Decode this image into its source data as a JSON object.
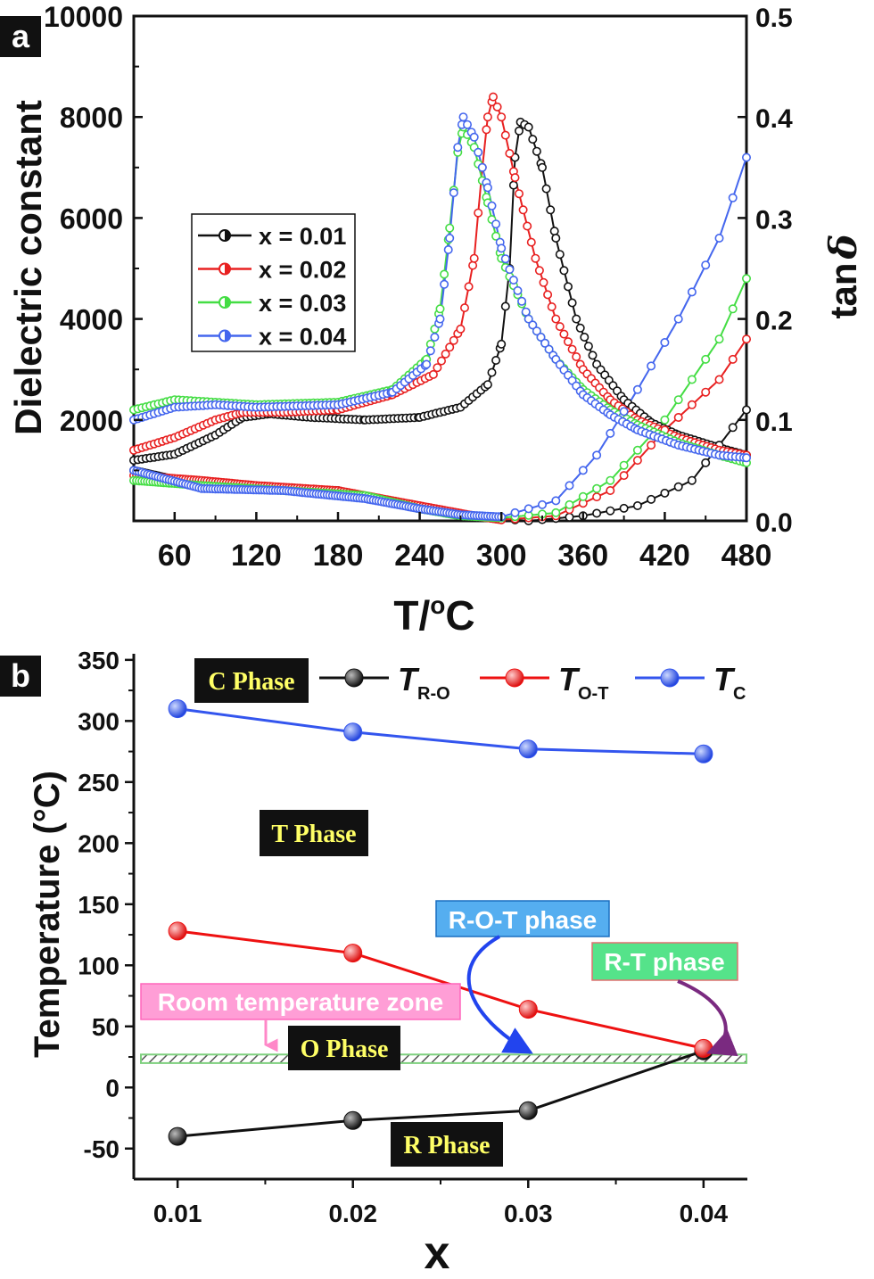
{
  "panel_a": {
    "label": "a",
    "chart_data": {
      "type": "line",
      "xlabel": "T/",
      "xlabel_sup": "o",
      "xlabel_unit": "C",
      "ylabel": "Dielectric constant",
      "y2label": "tan",
      "y2label_symbol": "δ",
      "xlim": [
        30,
        480
      ],
      "ylim": [
        0,
        10000
      ],
      "y2lim": [
        0,
        0.5
      ],
      "xticks": [
        "60",
        "120",
        "180",
        "240",
        "300",
        "360",
        "420",
        "480"
      ],
      "yticks": [
        "2000",
        "4000",
        "6000",
        "8000",
        "10000"
      ],
      "y2ticks": [
        "0.0",
        "0.1",
        "0.2",
        "0.3",
        "0.4",
        "0.5"
      ],
      "legend_position": "middle-left",
      "series": [
        {
          "name": "x = 0.01",
          "color": "#111111",
          "eps": [
            [
              30,
              1200
            ],
            [
              60,
              1320
            ],
            [
              90,
              1700
            ],
            [
              110,
              2050
            ],
            [
              130,
              2120
            ],
            [
              160,
              2050
            ],
            [
              200,
              2000
            ],
            [
              240,
              2050
            ],
            [
              270,
              2250
            ],
            [
              290,
              2700
            ],
            [
              300,
              3500
            ],
            [
              306,
              5000
            ],
            [
              310,
              7200
            ],
            [
              314,
              7900
            ],
            [
              320,
              7800
            ],
            [
              330,
              7000
            ],
            [
              340,
              5600
            ],
            [
              355,
              4000
            ],
            [
              370,
              3100
            ],
            [
              390,
              2400
            ],
            [
              410,
              1950
            ],
            [
              430,
              1700
            ],
            [
              460,
              1450
            ],
            [
              480,
              1300
            ]
          ],
          "tan": [
            [
              30,
              0.05
            ],
            [
              80,
              0.035
            ],
            [
              120,
              0.033
            ],
            [
              180,
              0.03
            ],
            [
              240,
              0.012
            ],
            [
              290,
              0.003
            ],
            [
              320,
              0.0
            ],
            [
              360,
              0.005
            ],
            [
              400,
              0.015
            ],
            [
              440,
              0.04
            ],
            [
              480,
              0.11
            ]
          ]
        },
        {
          "name": "x = 0.02",
          "color": "#e82020",
          "eps": [
            [
              30,
              1400
            ],
            [
              60,
              1650
            ],
            [
              90,
              2000
            ],
            [
              110,
              2150
            ],
            [
              140,
              2150
            ],
            [
              180,
              2200
            ],
            [
              220,
              2500
            ],
            [
              250,
              2900
            ],
            [
              270,
              3800
            ],
            [
              280,
              5200
            ],
            [
              286,
              7000
            ],
            [
              290,
              8000
            ],
            [
              294,
              8400
            ],
            [
              300,
              8000
            ],
            [
              310,
              6800
            ],
            [
              325,
              5200
            ],
            [
              340,
              4000
            ],
            [
              360,
              3000
            ],
            [
              380,
              2400
            ],
            [
              400,
              2000
            ],
            [
              430,
              1650
            ],
            [
              460,
              1400
            ],
            [
              480,
              1300
            ]
          ],
          "tan": [
            [
              30,
              0.045
            ],
            [
              80,
              0.04
            ],
            [
              120,
              0.035
            ],
            [
              180,
              0.03
            ],
            [
              240,
              0.015
            ],
            [
              280,
              0.005
            ],
            [
              300,
              0.001
            ],
            [
              340,
              0.005
            ],
            [
              380,
              0.03
            ],
            [
              420,
              0.09
            ],
            [
              460,
              0.14
            ],
            [
              480,
              0.18
            ]
          ]
        },
        {
          "name": "x = 0.03",
          "color": "#44dd44",
          "eps": [
            [
              30,
              2200
            ],
            [
              60,
              2400
            ],
            [
              90,
              2350
            ],
            [
              120,
              2300
            ],
            [
              180,
              2350
            ],
            [
              220,
              2600
            ],
            [
              245,
              3200
            ],
            [
              255,
              4200
            ],
            [
              262,
              5800
            ],
            [
              268,
              7300
            ],
            [
              272,
              7800
            ],
            [
              280,
              7400
            ],
            [
              290,
              6300
            ],
            [
              300,
              5200
            ],
            [
              320,
              4000
            ],
            [
              340,
              3200
            ],
            [
              360,
              2600
            ],
            [
              380,
              2200
            ],
            [
              400,
              1900
            ],
            [
              430,
              1550
            ],
            [
              460,
              1300
            ],
            [
              480,
              1150
            ]
          ],
          "tan": [
            [
              30,
              0.04
            ],
            [
              80,
              0.035
            ],
            [
              140,
              0.03
            ],
            [
              200,
              0.025
            ],
            [
              240,
              0.012
            ],
            [
              270,
              0.005
            ],
            [
              300,
              0.003
            ],
            [
              340,
              0.008
            ],
            [
              380,
              0.04
            ],
            [
              420,
              0.1
            ],
            [
              460,
              0.18
            ],
            [
              480,
              0.24
            ]
          ]
        },
        {
          "name": "x = 0.04",
          "color": "#4466ee",
          "eps": [
            [
              30,
              2000
            ],
            [
              60,
              2250
            ],
            [
              90,
              2300
            ],
            [
              120,
              2250
            ],
            [
              180,
              2300
            ],
            [
              220,
              2550
            ],
            [
              245,
              3100
            ],
            [
              255,
              4000
            ],
            [
              262,
              5600
            ],
            [
              268,
              7400
            ],
            [
              272,
              8000
            ],
            [
              280,
              7600
            ],
            [
              290,
              6600
            ],
            [
              300,
              5400
            ],
            [
              320,
              4000
            ],
            [
              340,
              3200
            ],
            [
              360,
              2500
            ],
            [
              380,
              2100
            ],
            [
              400,
              1800
            ],
            [
              430,
              1500
            ],
            [
              460,
              1300
            ],
            [
              480,
              1250
            ]
          ],
          "tan": [
            [
              30,
              0.05
            ],
            [
              80,
              0.032
            ],
            [
              140,
              0.03
            ],
            [
              200,
              0.022
            ],
            [
              240,
              0.012
            ],
            [
              270,
              0.006
            ],
            [
              300,
              0.004
            ],
            [
              340,
              0.02
            ],
            [
              370,
              0.065
            ],
            [
              400,
              0.13
            ],
            [
              430,
              0.2
            ],
            [
              460,
              0.28
            ],
            [
              480,
              0.36
            ]
          ]
        }
      ]
    }
  },
  "panel_b": {
    "label": "b",
    "chart_data": {
      "type": "line",
      "xlabel": "x",
      "ylabel": "Temperature (°C)",
      "xlim": [
        0.0075,
        0.0425
      ],
      "ylim": [
        -75,
        355
      ],
      "x": [
        0.01,
        0.02,
        0.03,
        0.04
      ],
      "xticks": [
        "0.01",
        "0.02",
        "0.03",
        "0.04"
      ],
      "yticks": [
        "-50",
        "0",
        "50",
        "100",
        "150",
        "200",
        "250",
        "300",
        "350"
      ],
      "yticks_small": [
        "-25",
        "25",
        "75",
        "125",
        "175",
        "225",
        "275",
        "325"
      ],
      "series": [
        {
          "name": "T",
          "sub": "R-O",
          "color": "#111111",
          "values": [
            -40,
            -27,
            -19,
            30
          ]
        },
        {
          "name": "T",
          "sub": "O-T",
          "color": "#ee1111",
          "values": [
            128,
            110,
            64,
            32
          ]
        },
        {
          "name": "T",
          "sub": "C",
          "color": "#3355ee",
          "values": [
            310,
            291,
            277,
            273
          ]
        }
      ],
      "room_zone": [
        20,
        27
      ],
      "annotations": {
        "c_phase": "C Phase",
        "t_phase": "T Phase",
        "o_phase": "O Phase",
        "r_phase": "R Phase",
        "rot_phase": "R-O-T phase",
        "rt_phase": "R-T phase",
        "room_zone": "Room temperature zone"
      }
    }
  }
}
